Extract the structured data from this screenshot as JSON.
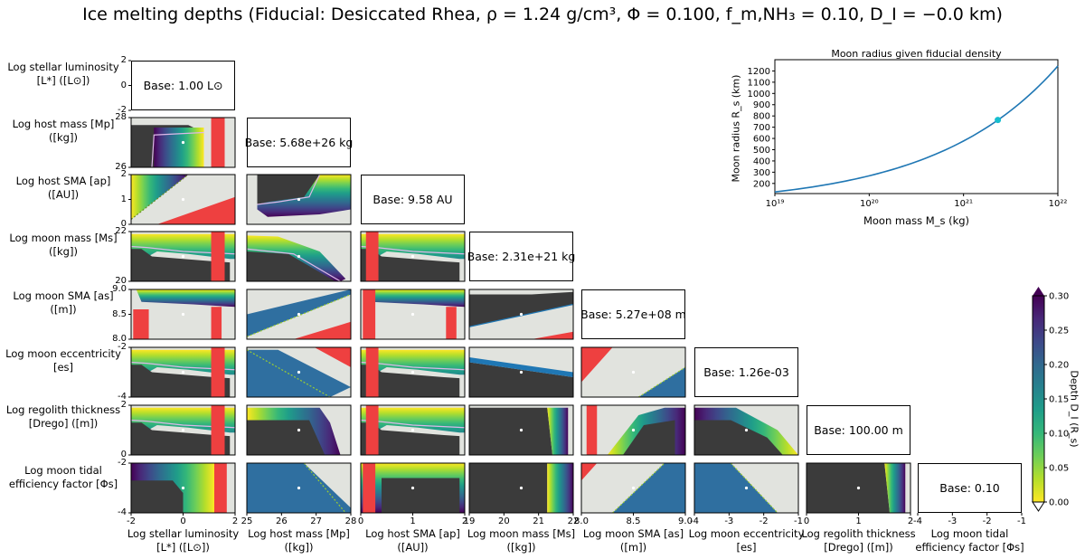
{
  "title": "Ice melting depths (Fiducial: Desiccated Rhea, ρ = 1.24 g/cm³, Φ = 0.100, f_m,NH₃ = 0.10, D_I = −0.0 km)",
  "row_labels": [
    "Log stellar luminosity [L*] ([L⊙])",
    "Log host mass [Mp] ([kg])",
    "Log host SMA [ap] ([AU])",
    "Log moon mass [Ms] ([kg])",
    "Log moon SMA [as] ([m])",
    "Log moon eccentricity [es]",
    "Log regolith thickness [Drego] ([m])",
    "Log moon tidal efficiency factor [Φs]"
  ],
  "col_labels": [
    "Log stellar luminosity [L*] ([L⊙])",
    "Log host mass [Mp] ([kg])",
    "Log host SMA [ap] ([AU])",
    "Log moon mass [Ms] ([kg])",
    "Log moon SMA [as] ([m])",
    "Log moon eccentricity [es]",
    "Log regolith thickness [Drego] ([m])",
    "Log moon tidal efficiency factor [Φs]"
  ],
  "base_values": [
    "Base: 1.00 L⊙",
    "Base: 5.68e+26 kg",
    "Base: 9.58 AU",
    "Base: 2.31e+21 kg",
    "Base: 5.27e+08 m",
    "Base: 1.26e-03",
    "Base: 100.00 m",
    "Base: 0.10"
  ],
  "y_ticks": [
    [
      "-2",
      "0",
      "2"
    ],
    [
      "26",
      "28"
    ],
    [
      "0",
      "1",
      "2"
    ],
    [
      "20",
      "22"
    ],
    [
      "8.0",
      "8.5",
      "9.0"
    ],
    [
      "-4",
      "-2"
    ],
    [
      "0",
      "2"
    ],
    [
      "-4",
      "-2"
    ]
  ],
  "x_ticks": [
    [
      "-2",
      "0",
      "2"
    ],
    [
      "25",
      "26",
      "27",
      "28"
    ],
    [
      "0",
      "1",
      "2"
    ],
    [
      "19",
      "20",
      "21",
      "22"
    ],
    [
      "8.0",
      "8.5",
      "9.0"
    ],
    [
      "-4",
      "-3",
      "-2",
      "-1"
    ],
    [
      "0",
      "1",
      "2"
    ],
    [
      "-4",
      "-3",
      "-2",
      "-1"
    ]
  ],
  "colors": {
    "too_deep": "#3b3b3b",
    "surface": "#e1e3de",
    "excluded": "#ee4040",
    "contour": "#dcb8e8",
    "fiducial_marker": "#ffffff",
    "line": "#1f77b4",
    "marker": "#17becf"
  },
  "colorbar": {
    "label": "Depth D_I (R_s)",
    "ticks": [
      "0.00",
      "0.05",
      "0.10",
      "0.15",
      "0.20",
      "0.25",
      "0.30"
    ],
    "range": [
      0.0,
      0.3
    ],
    "colormap": "viridis_r"
  },
  "chart_data": [
    {
      "type": "line",
      "title": "Moon radius given fiducial density",
      "xlabel": "Moon mass M_s (kg)",
      "ylabel": "Moon radius R_s (km)",
      "xscale": "log",
      "xlim": [
        1e+19,
        1e+22
      ],
      "ylim": [
        110,
        1300
      ],
      "x_tick_labels": [
        "10¹⁹",
        "10²⁰",
        "10²¹",
        "10²²"
      ],
      "y_tick_labels": [
        "200",
        "300",
        "400",
        "500",
        "600",
        "700",
        "800",
        "900",
        "1000",
        "1100",
        "1200"
      ],
      "y_ticks": [
        200,
        300,
        400,
        500,
        600,
        700,
        800,
        900,
        1000,
        1100,
        1200
      ],
      "density_g_cm3": 1.24,
      "x": [
        1e+19,
        3.16e+19,
        1e+20,
        3.16e+20,
        1e+21,
        2.31e+21,
        3.16e+21,
        1e+22
      ],
      "y": [
        125,
        183,
        269,
        394,
        579,
        764,
        849,
        1245
      ],
      "highlight_point": {
        "x": 2.31e+21,
        "y": 764
      }
    },
    {
      "type": "heatmap",
      "title": "Corner plot of ice melting depth D_I over pairs of log parameters",
      "value_range": [
        0.0,
        0.3
      ],
      "note": "Lower triangle of an 8x8 grid; diagonal panels show the base value of each parameter."
    }
  ]
}
